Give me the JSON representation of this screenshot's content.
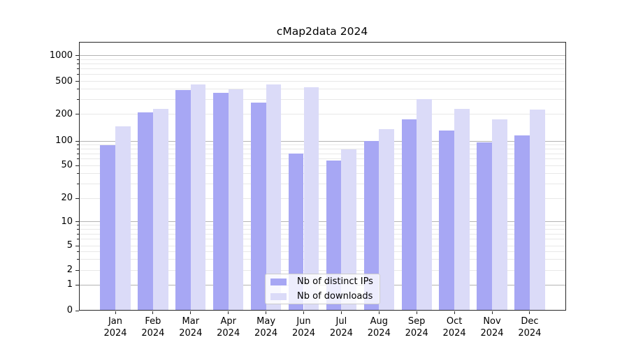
{
  "title": "cMap2data 2024",
  "colors": {
    "distinct_ips": "#a7a7f4",
    "downloads": "#dbdbf8",
    "grid_major": "#b3b3b3",
    "grid_minor": "#e8e8e8",
    "axis": "#262626",
    "text": "#000000",
    "legend_border": "#cccccc"
  },
  "legend": {
    "items": [
      {
        "label": "Nb of distinct IPs",
        "color_key": "distinct_ips"
      },
      {
        "label": "Nb of downloads",
        "color_key": "downloads"
      }
    ]
  },
  "chart_data": {
    "type": "bar",
    "title": "cMap2data 2024",
    "categories": [
      "Jan 2024",
      "Feb 2024",
      "Mar 2024",
      "Apr 2024",
      "May 2024",
      "Jun 2024",
      "Jul 2024",
      "Aug 2024",
      "Sep 2024",
      "Oct 2024",
      "Nov 2024",
      "Dec 2024"
    ],
    "series": [
      {
        "name": "Nb of distinct IPs",
        "color": "#a7a7f4",
        "values": [
          89,
          210,
          390,
          365,
          275,
          70,
          58,
          100,
          175,
          130,
          97,
          116
        ]
      },
      {
        "name": "Nb of downloads",
        "color": "#dbdbf8",
        "values": [
          145,
          230,
          460,
          400,
          455,
          425,
          79,
          135,
          305,
          233,
          175,
          225
        ]
      }
    ],
    "xlabel": "",
    "ylabel": "",
    "yscale": "symlog",
    "y_ticks": [
      0,
      1,
      2,
      5,
      10,
      20,
      50,
      100,
      200,
      500,
      1000
    ],
    "y_major_grid": [
      1,
      10,
      100,
      1000
    ],
    "ylim": [
      0,
      1400
    ],
    "grid": true,
    "legend_position": "lower center"
  }
}
